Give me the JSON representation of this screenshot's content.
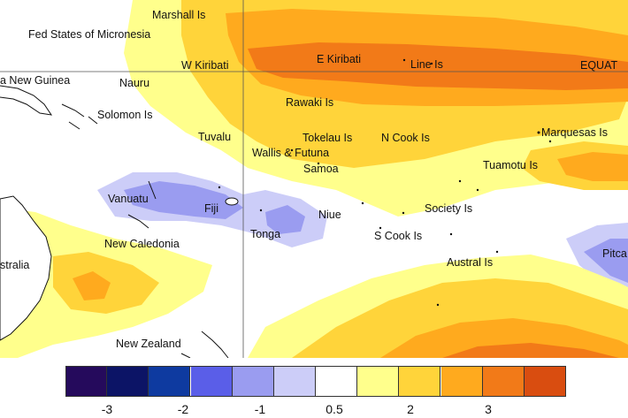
{
  "map": {
    "labels": [
      {
        "id": "marshall-is",
        "text": "Marshall Is"
      },
      {
        "id": "fed-states-micronesia",
        "text": "Fed States of Micronesia"
      },
      {
        "id": "papua-new-guinea",
        "text": "a New Guinea"
      },
      {
        "id": "nauru",
        "text": "Nauru"
      },
      {
        "id": "w-kiribati",
        "text": "W Kiribati"
      },
      {
        "id": "e-kiribati",
        "text": "E Kiribati"
      },
      {
        "id": "line-is",
        "text": "Line Is"
      },
      {
        "id": "equator",
        "text": "EQUAT"
      },
      {
        "id": "solomon-is",
        "text": "Solomon Is"
      },
      {
        "id": "rawaki-is",
        "text": "Rawaki Is"
      },
      {
        "id": "tuvalu",
        "text": "Tuvalu"
      },
      {
        "id": "tokelau-is",
        "text": "Tokelau Is"
      },
      {
        "id": "n-cook-is",
        "text": "N Cook Is"
      },
      {
        "id": "marquesas-is",
        "text": "Marquesas Is"
      },
      {
        "id": "wallis-futuna",
        "text": "Wallis & Futuna"
      },
      {
        "id": "samoa",
        "text": "Samoa"
      },
      {
        "id": "tuamotu-is",
        "text": "Tuamotu Is"
      },
      {
        "id": "vanuatu",
        "text": "Vanuatu"
      },
      {
        "id": "fiji",
        "text": "Fiji"
      },
      {
        "id": "niue",
        "text": "Niue"
      },
      {
        "id": "society-is",
        "text": "Society Is"
      },
      {
        "id": "tonga",
        "text": "Tonga"
      },
      {
        "id": "s-cook-is",
        "text": "S Cook Is"
      },
      {
        "id": "new-caledonia",
        "text": "New Caledonia"
      },
      {
        "id": "australia",
        "text": "stralia"
      },
      {
        "id": "austral-is",
        "text": "Austral Is"
      },
      {
        "id": "pitcairn",
        "text": "Pitca"
      },
      {
        "id": "new-zealand",
        "text": "New Zealand"
      }
    ]
  },
  "legend": {
    "colors": [
      "#250a5c",
      "#0c1466",
      "#0e3aa0",
      "#5a5ee8",
      "#9a9cf0",
      "#cccdf8",
      "#ffffff",
      "#ffff8c",
      "#ffd43a",
      "#ffaa1e",
      "#f27a18",
      "#d94d10"
    ],
    "ticks": [
      "-3",
      "-2",
      "-1",
      "0.5",
      "2",
      "3"
    ]
  }
}
